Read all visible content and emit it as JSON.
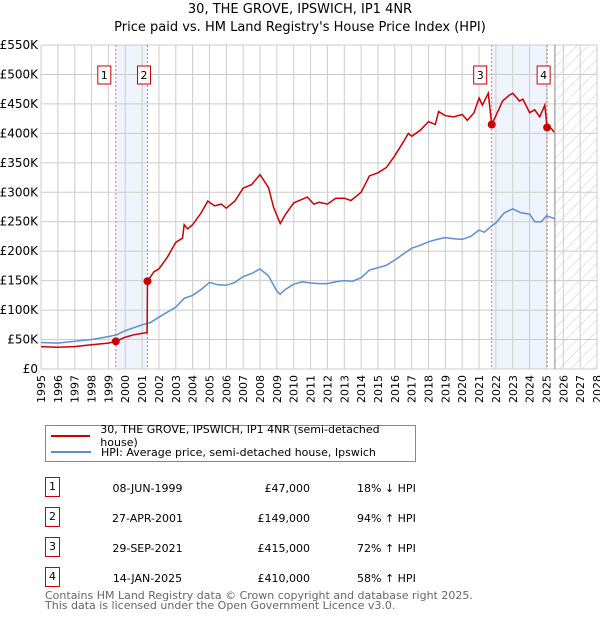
{
  "title": "30, THE GROVE, IPSWICH, IP1 4NR",
  "subtitle": "Price paid vs. HM Land Registry's House Price Index (HPI)",
  "chart_data": {
    "type": "line",
    "title": "30, THE GROVE, IPSWICH, IP1 4NR",
    "subtitle": "Price paid vs. HM Land Registry's House Price Index (HPI)",
    "xlim": [
      1995,
      2028
    ],
    "ylim": [
      0,
      550000
    ],
    "x_ticks": [
      "1995",
      "1996",
      "1997",
      "1998",
      "1999",
      "2000",
      "2001",
      "2002",
      "2003",
      "2004",
      "2005",
      "2006",
      "2007",
      "2008",
      "2009",
      "2010",
      "2011",
      "2012",
      "2013",
      "2014",
      "2015",
      "2016",
      "2017",
      "2018",
      "2019",
      "2020",
      "2021",
      "2022",
      "2023",
      "2024",
      "2025",
      "2026",
      "2027",
      "2028"
    ],
    "y_ticks": [
      {
        "v": 0,
        "label": "£0"
      },
      {
        "v": 50000,
        "label": "£50K"
      },
      {
        "v": 100000,
        "label": "£100K"
      },
      {
        "v": 150000,
        "label": "£150K"
      },
      {
        "v": 200000,
        "label": "£200K"
      },
      {
        "v": 250000,
        "label": "£250K"
      },
      {
        "v": 300000,
        "label": "£300K"
      },
      {
        "v": 350000,
        "label": "£350K"
      },
      {
        "v": 400000,
        "label": "£400K"
      },
      {
        "v": 450000,
        "label": "£450K"
      },
      {
        "v": 500000,
        "label": "£500K"
      },
      {
        "v": 550000,
        "label": "£550K"
      }
    ],
    "grid": true,
    "shaded_ranges": [
      [
        1999.44,
        2001.32
      ],
      [
        2021.75,
        2025.04
      ]
    ],
    "forecast_hatch_from": 2025.5,
    "series": [
      {
        "name": "30, THE GROVE, IPSWICH, IP1 4NR (semi-detached house)",
        "color": "#cc0000",
        "x": [
          1995,
          1996,
          1997,
          1998,
          1999,
          1999.44,
          2000,
          2000.5,
          2001.3,
          2001.32,
          2001.7,
          2002,
          2002.5,
          2003,
          2003.4,
          2003.5,
          2003.7,
          2004,
          2004.5,
          2004.9,
          2005.3,
          2005.7,
          2006,
          2006.5,
          2007,
          2007.5,
          2008,
          2008.5,
          2008.8,
          2009.2,
          2009.5,
          2010,
          2010.5,
          2010.8,
          2011.2,
          2011.5,
          2012,
          2012.5,
          2013,
          2013.4,
          2014,
          2014.5,
          2015,
          2015.5,
          2016,
          2016.5,
          2016.8,
          2017,
          2017.5,
          2018,
          2018.4,
          2018.6,
          2019,
          2019.5,
          2020,
          2020.3,
          2020.7,
          2021,
          2021.2,
          2021.55,
          2021.75,
          2022,
          2022.4,
          2022.8,
          2023,
          2023.4,
          2023.6,
          2024,
          2024.3,
          2024.6,
          2024.9,
          2025.04,
          2025.3,
          2025.45
        ],
        "y": [
          38000,
          37000,
          38000,
          41000,
          44000,
          47000,
          54000,
          58000,
          62000,
          149000,
          165000,
          170000,
          190000,
          215000,
          222000,
          245000,
          238000,
          245000,
          265000,
          285000,
          277000,
          280000,
          273000,
          285000,
          307000,
          313000,
          330000,
          308000,
          275000,
          247000,
          262000,
          282000,
          288000,
          292000,
          280000,
          283000,
          280000,
          290000,
          290000,
          286000,
          300000,
          328000,
          333000,
          342000,
          362000,
          385000,
          400000,
          395000,
          405000,
          420000,
          415000,
          437000,
          430000,
          428000,
          432000,
          422000,
          435000,
          460000,
          448000,
          468000,
          415000,
          430000,
          455000,
          465000,
          468000,
          455000,
          458000,
          435000,
          440000,
          428000,
          448000,
          410000,
          408000,
          402000
        ]
      },
      {
        "name": "HPI: Average price, semi-detached house, Ipswich",
        "color": "#5b8fd6",
        "x": [
          1995,
          1996,
          1997,
          1998,
          1999,
          1999.5,
          2000,
          2001,
          2001.5,
          2002,
          2003,
          2003.5,
          2004,
          2004.5,
          2005,
          2005.5,
          2006,
          2006.5,
          2007,
          2007.5,
          2008,
          2008.5,
          2009,
          2009.2,
          2009.5,
          2010,
          2010.5,
          2011,
          2011.5,
          2012,
          2012.5,
          2013,
          2013.5,
          2014,
          2014.5,
          2015,
          2015.5,
          2016,
          2016.5,
          2017,
          2017.5,
          2018,
          2018.5,
          2019,
          2019.5,
          2020,
          2020.5,
          2021,
          2021.3,
          2021.75,
          2022,
          2022.5,
          2023,
          2023.5,
          2024,
          2024.3,
          2024.7,
          2025,
          2025.5
        ],
        "y": [
          45000,
          44000,
          47000,
          50000,
          55000,
          58000,
          65000,
          75000,
          79000,
          88000,
          105000,
          120000,
          125000,
          135000,
          147000,
          143000,
          142000,
          147000,
          157000,
          162000,
          170000,
          158000,
          132000,
          127000,
          135000,
          144000,
          148000,
          146000,
          145000,
          145000,
          148000,
          150000,
          149000,
          155000,
          168000,
          172000,
          176000,
          185000,
          195000,
          205000,
          210000,
          216000,
          220000,
          223000,
          221000,
          220000,
          225000,
          236000,
          232000,
          243000,
          248000,
          265000,
          272000,
          265000,
          263000,
          250000,
          250000,
          260000,
          255000
        ]
      }
    ],
    "sales": [
      {
        "label": "1",
        "x": 1999.44,
        "y": 47000
      },
      {
        "label": "2",
        "x": 2001.32,
        "y": 149000
      },
      {
        "label": "3",
        "x": 2021.75,
        "y": 415000
      },
      {
        "label": "4",
        "x": 2025.04,
        "y": 410000
      }
    ]
  },
  "legend": [
    {
      "label": "30, THE GROVE, IPSWICH, IP1 4NR (semi-detached house)",
      "color": "#cc0000"
    },
    {
      "label": "HPI: Average price, semi-detached house, Ipswich",
      "color": "#5b8fd6"
    }
  ],
  "transactions": [
    {
      "num": "1",
      "date": "08-JUN-1999",
      "price": "£47,000",
      "hpi": "18% ↓ HPI"
    },
    {
      "num": "2",
      "date": "27-APR-2001",
      "price": "£149,000",
      "hpi": "94% ↑ HPI"
    },
    {
      "num": "3",
      "date": "29-SEP-2021",
      "price": "£415,000",
      "hpi": "72% ↑ HPI"
    },
    {
      "num": "4",
      "date": "14-JAN-2025",
      "price": "£410,000",
      "hpi": "58% ↑ HPI"
    }
  ],
  "footer": {
    "line1": "Contains HM Land Registry data © Crown copyright and database right 2025.",
    "line2": "This data is licensed under the Open Government Licence v3.0."
  }
}
